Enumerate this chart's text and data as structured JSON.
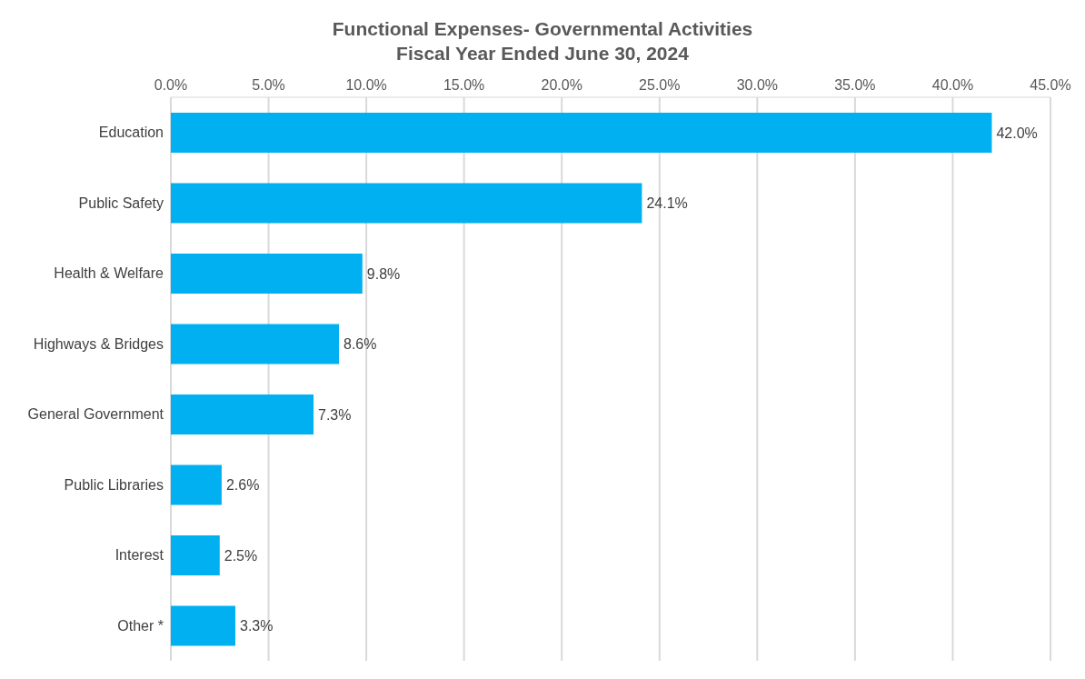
{
  "chart_data": {
    "type": "bar",
    "orientation": "horizontal",
    "title": "Functional Expenses- Governmental Activities\nFiscal Year Ended June 30, 2024",
    "categories": [
      "Education",
      "Public Safety",
      "Health & Welfare",
      "Highways & Bridges",
      "General Government",
      "Public Libraries",
      "Interest",
      "Other *"
    ],
    "values": [
      42.0,
      24.1,
      9.8,
      8.6,
      7.3,
      2.6,
      2.5,
      3.3
    ],
    "value_labels": [
      "42.0%",
      "24.1%",
      "9.8%",
      "8.6%",
      "7.3%",
      "2.6%",
      "2.5%",
      "3.3%"
    ],
    "color": "#00b0f0",
    "xlim": [
      0,
      45
    ],
    "xticks": [
      {
        "value": 0,
        "label": "0.0%"
      },
      {
        "value": 5,
        "label": "5.0%"
      },
      {
        "value": 10,
        "label": "10.0%"
      },
      {
        "value": 15,
        "label": "15.0%"
      },
      {
        "value": 20,
        "label": "20.0%"
      },
      {
        "value": 25,
        "label": "25.0%"
      },
      {
        "value": 30,
        "label": "30.0%"
      },
      {
        "value": 35,
        "label": "35.0%"
      },
      {
        "value": 40,
        "label": "40.0%"
      },
      {
        "value": 45,
        "label": "45.0%"
      }
    ],
    "grid": "x"
  }
}
